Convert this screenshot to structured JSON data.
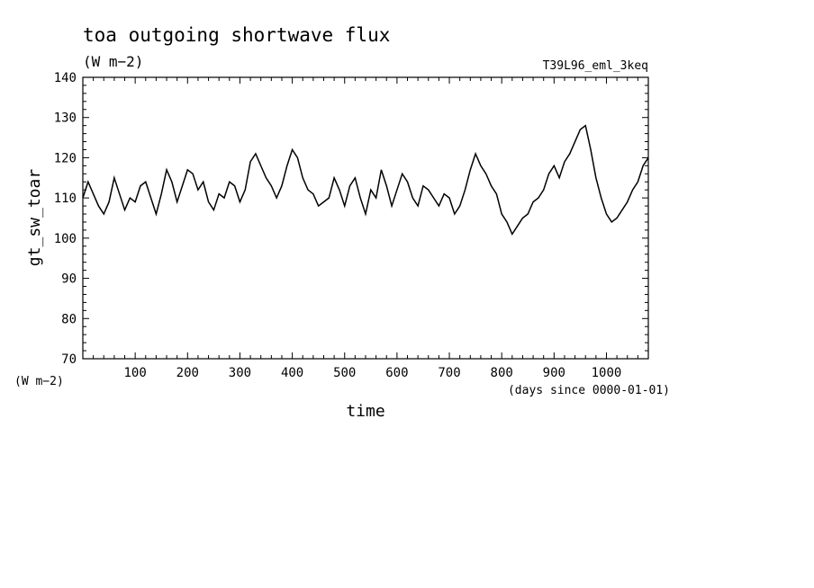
{
  "chart_data": {
    "type": "line",
    "title": "toa outgoing shortwave flux",
    "units_label": "(W m−2)",
    "run_label": "T39L96_eml_3keq",
    "xlabel": "time",
    "xunits": "(days since 0000-01-01)",
    "ylabel": "gt_sw_toar",
    "yunits": "(W m−2)",
    "xlim": [
      0,
      1080
    ],
    "ylim": [
      70,
      140
    ],
    "xticks": [
      "100",
      "200",
      "300",
      "400",
      "500",
      "600",
      "700",
      "800",
      "900",
      "1000"
    ],
    "yticks": [
      "70",
      "80",
      "90",
      "100",
      "110",
      "120",
      "130",
      "140"
    ],
    "grid": false,
    "series": [
      {
        "color": "#000000",
        "x": [
          0,
          10,
          20,
          30,
          40,
          50,
          60,
          70,
          80,
          90,
          100,
          110,
          120,
          130,
          140,
          150,
          160,
          170,
          180,
          190,
          200,
          210,
          220,
          230,
          240,
          250,
          260,
          270,
          280,
          290,
          300,
          310,
          320,
          330,
          340,
          350,
          360,
          370,
          380,
          390,
          400,
          410,
          420,
          430,
          440,
          450,
          460,
          470,
          480,
          490,
          500,
          510,
          520,
          530,
          540,
          550,
          560,
          570,
          580,
          590,
          600,
          610,
          620,
          630,
          640,
          650,
          660,
          670,
          680,
          690,
          700,
          710,
          720,
          730,
          740,
          750,
          760,
          770,
          780,
          790,
          800,
          810,
          820,
          830,
          840,
          850,
          860,
          870,
          880,
          890,
          900,
          910,
          920,
          930,
          940,
          950,
          960,
          970,
          980,
          990,
          1000,
          1010,
          1020,
          1030,
          1040,
          1050,
          1060,
          1070,
          1080
        ],
        "y": [
          110,
          114,
          111,
          108,
          106,
          109,
          115,
          111,
          107,
          110,
          109,
          113,
          114,
          110,
          106,
          111,
          117,
          114,
          109,
          113,
          117,
          116,
          112,
          114,
          109,
          107,
          111,
          110,
          114,
          113,
          109,
          112,
          119,
          121,
          118,
          115,
          113,
          110,
          113,
          118,
          122,
          120,
          115,
          112,
          111,
          108,
          109,
          110,
          115,
          112,
          108,
          113,
          115,
          110,
          106,
          112,
          110,
          117,
          113,
          108,
          112,
          116,
          114,
          110,
          108,
          113,
          112,
          110,
          108,
          111,
          110,
          106,
          108,
          112,
          117,
          121,
          118,
          116,
          113,
          111,
          106,
          104,
          101,
          103,
          105,
          106,
          109,
          110,
          112,
          116,
          118,
          115,
          119,
          121,
          124,
          127,
          128,
          122,
          115,
          110,
          106,
          104,
          105,
          107,
          109,
          112,
          114,
          118,
          120
        ]
      }
    ]
  }
}
